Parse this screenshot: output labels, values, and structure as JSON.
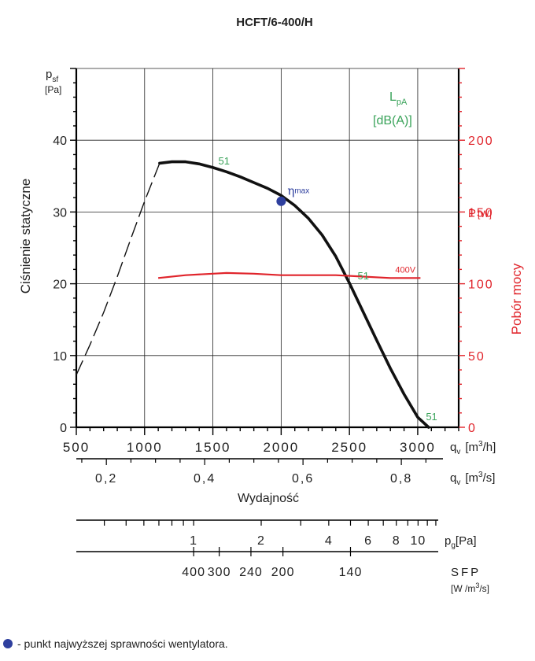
{
  "colors": {
    "black": "#111111",
    "red": "#e0242b",
    "green": "#3aa35a",
    "blue": "#2e3f9e",
    "grid": "#222222"
  },
  "chart_data": {
    "type": "line",
    "title": "HCFT/6-400/H",
    "xlabel": "Wydajność",
    "ylabel_left": "Ciśnienie statyczne",
    "ylabel_right": "Pobór mocy",
    "left_axis_symbol": {
      "main": "p",
      "sub": "sf",
      "unit": "[Pa]"
    },
    "right_axis_symbol": {
      "main": "P",
      "unit": "[W]"
    },
    "lpa_label": {
      "main": "L",
      "sub": "pA",
      "unit": "[dB(A)]"
    },
    "qv_m3h_label": {
      "main": "q",
      "sub": "v",
      "unit_pre": "[m",
      "unit_sup": "3",
      "unit_post": "/h]"
    },
    "qv_m3s_label": {
      "main": "q",
      "sub": "v",
      "unit_pre": "[m",
      "unit_sup": "3",
      "unit_post": "/s]"
    },
    "pg_label": {
      "main": "p",
      "sub": "g",
      "unit": "[Pa]"
    },
    "sfp_label": "SFP",
    "sfp_unit": {
      "pre": "[W /m",
      "sup": "3",
      "post": "/s]"
    },
    "eta_label": {
      "main": "η",
      "sub": "max"
    },
    "xlim": [
      500,
      3300
    ],
    "ylim_left": [
      0,
      50
    ],
    "ylim_right": [
      0,
      250
    ],
    "grid": true,
    "x_ticks_m3h": [
      500,
      1000,
      1500,
      2000,
      2500,
      3000
    ],
    "x_ticks_m3h_labels": [
      "500",
      "1000",
      "1500",
      "2000",
      "2500",
      "3000"
    ],
    "x_ticks_m3s": [
      0.2,
      0.4,
      0.6,
      0.8
    ],
    "x_ticks_m3s_labels": [
      "0,2",
      "0,4",
      "0,6",
      "0,8"
    ],
    "y_ticks_left": [
      0,
      10,
      20,
      30,
      40
    ],
    "y_ticks_left_labels": [
      "0",
      "10",
      "20",
      "30",
      "40"
    ],
    "y_ticks_right": [
      0,
      50,
      100,
      150,
      200
    ],
    "y_ticks_right_labels": [
      "0",
      "50",
      "100",
      "150",
      "200"
    ],
    "pressure_curve": {
      "x": [
        1110,
        1200,
        1300,
        1400,
        1500,
        1600,
        1700,
        1800,
        1900,
        2000,
        2100,
        2200,
        2300,
        2400,
        2500,
        2600,
        2700,
        2800,
        2900,
        3000,
        3080
      ],
      "y": [
        36.8,
        37.0,
        37.0,
        36.7,
        36.2,
        35.6,
        34.9,
        34.1,
        33.3,
        32.3,
        30.9,
        29.1,
        26.8,
        23.8,
        20.1,
        16.1,
        12.1,
        8.2,
        4.6,
        1.4,
        0
      ]
    },
    "pressure_unstable": {
      "x": [
        500,
        600,
        700,
        800,
        900,
        1000,
        1110
      ],
      "y": [
        7.3,
        11.5,
        16.0,
        21.0,
        26.3,
        31.5,
        36.8
      ]
    },
    "power_curve": {
      "x": [
        1100,
        1300,
        1500,
        1600,
        1800,
        2000,
        2200,
        2400,
        2600,
        2800,
        3020
      ],
      "y": [
        104,
        106,
        107,
        107.5,
        107,
        106,
        106,
        106,
        105,
        104,
        104
      ]
    },
    "power_series_label": "400V",
    "eta_point": {
      "x": 2000,
      "y": 31.5
    },
    "lpa_annotations": [
      {
        "text": "51",
        "x": 1540,
        "y": 36.6
      },
      {
        "text": "51",
        "x": 2560,
        "y": 20.6
      },
      {
        "text": "51",
        "x": 3060,
        "y": 1.0
      }
    ],
    "pg_ticks_major": [
      {
        "value": 1,
        "label": "1"
      },
      {
        "value": 2,
        "label": "2"
      },
      {
        "value": 4,
        "label": "4"
      },
      {
        "value": 6,
        "label": "6"
      },
      {
        "value": 8,
        "label": "8"
      },
      {
        "value": 10,
        "label": "10"
      }
    ],
    "sfp_ticks": [
      {
        "label": "400",
        "ref_pg": 1
      },
      {
        "label": "300",
        "ref_pg": 1.3
      },
      {
        "label": "240",
        "ref_pg": 1.8
      },
      {
        "label": "200",
        "ref_pg": 2.5
      },
      {
        "label": "140",
        "ref_pg": 5
      }
    ]
  },
  "legend": {
    "text": " - punkt najwyższej sprawności wentylatora."
  }
}
